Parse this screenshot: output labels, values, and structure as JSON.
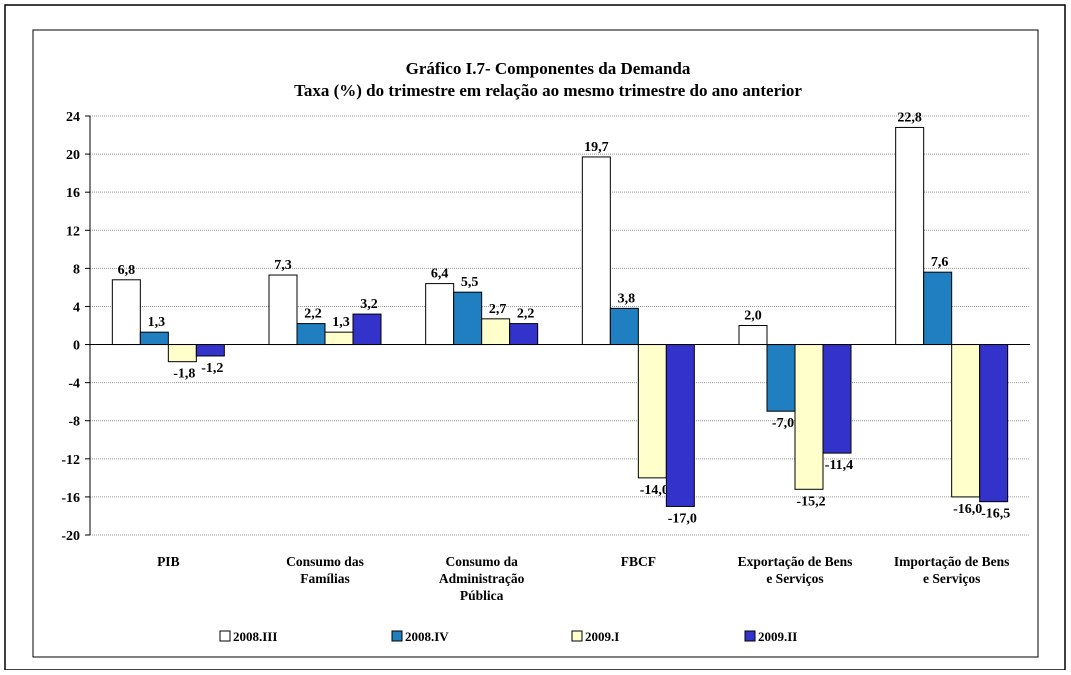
{
  "chart_data": {
    "type": "bar",
    "title": "Gráfico I.7- Componentes da Demanda",
    "subtitle": "Taxa (%) do trimestre em relação ao mesmo trimestre do ano anterior",
    "categories": [
      [
        "PIB"
      ],
      [
        "Consumo das",
        "Famílias"
      ],
      [
        "Consumo da",
        "Administração",
        "Pública"
      ],
      [
        "FBCF"
      ],
      [
        "Exportação de Bens",
        "e Serviços"
      ],
      [
        "Importação de Bens",
        "e Serviços"
      ]
    ],
    "series": [
      {
        "name": "2008.III",
        "color": "#ffffff",
        "values": [
          6.8,
          7.3,
          6.4,
          19.7,
          2.0,
          22.8
        ],
        "value_labels": [
          "6,8",
          "7,3",
          "6,4",
          "19,7",
          "2,0",
          "22,8"
        ]
      },
      {
        "name": "2008.IV",
        "color": "#1f7fc0",
        "values": [
          1.3,
          2.2,
          5.5,
          3.8,
          -7.0,
          7.6
        ],
        "value_labels": [
          "1,3",
          "2,2",
          "5,5",
          "3,8",
          "-7,0",
          "7,6"
        ]
      },
      {
        "name": "2009.I",
        "color": "#ffffcc",
        "values": [
          -1.8,
          1.3,
          2.7,
          -14.0,
          -15.2,
          -16.0
        ],
        "value_labels": [
          "-1,8",
          "1,3",
          "2,7",
          "-14,0",
          "-15,2",
          "-16,0"
        ]
      },
      {
        "name": "2009.II",
        "color": "#3333cc",
        "values": [
          -1.2,
          3.2,
          2.2,
          -17.0,
          -11.4,
          -16.5
        ],
        "value_labels": [
          "-1,2",
          "3,2",
          "2,2",
          "-17,0",
          "-11,4",
          "-16,5"
        ]
      }
    ],
    "ylim": [
      -20,
      24
    ],
    "yticks": [
      -20,
      -16,
      -12,
      -8,
      -4,
      0,
      4,
      8,
      12,
      16,
      20,
      24
    ],
    "grid": true
  }
}
